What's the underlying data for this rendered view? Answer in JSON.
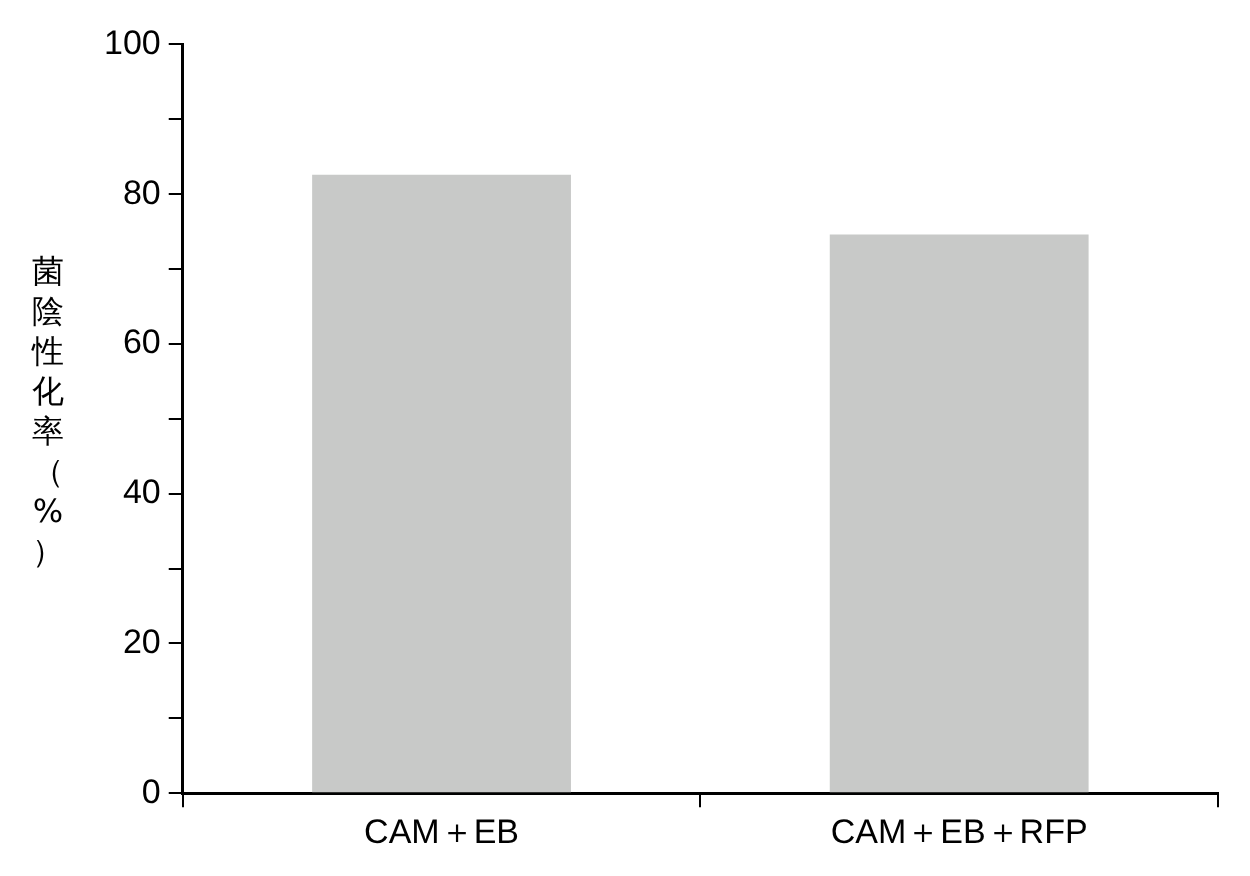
{
  "chart_data": {
    "type": "bar",
    "ylabel": "菌陰性化率（%）",
    "categories": [
      "CAM＋EB",
      "CAM＋EB＋RFP"
    ],
    "values": [
      82.6,
      74.6
    ],
    "color": "#c8c9c8",
    "ylim": [
      0,
      100
    ],
    "yticks": [
      0,
      {
        "value": 10,
        "label": null
      },
      20,
      {
        "value": 30,
        "label": null
      },
      40,
      {
        "value": 50,
        "label": null
      },
      60,
      {
        "value": 70,
        "label": null
      },
      80,
      {
        "value": 90,
        "label": null
      },
      100
    ],
    "grid": false,
    "legend": false
  }
}
